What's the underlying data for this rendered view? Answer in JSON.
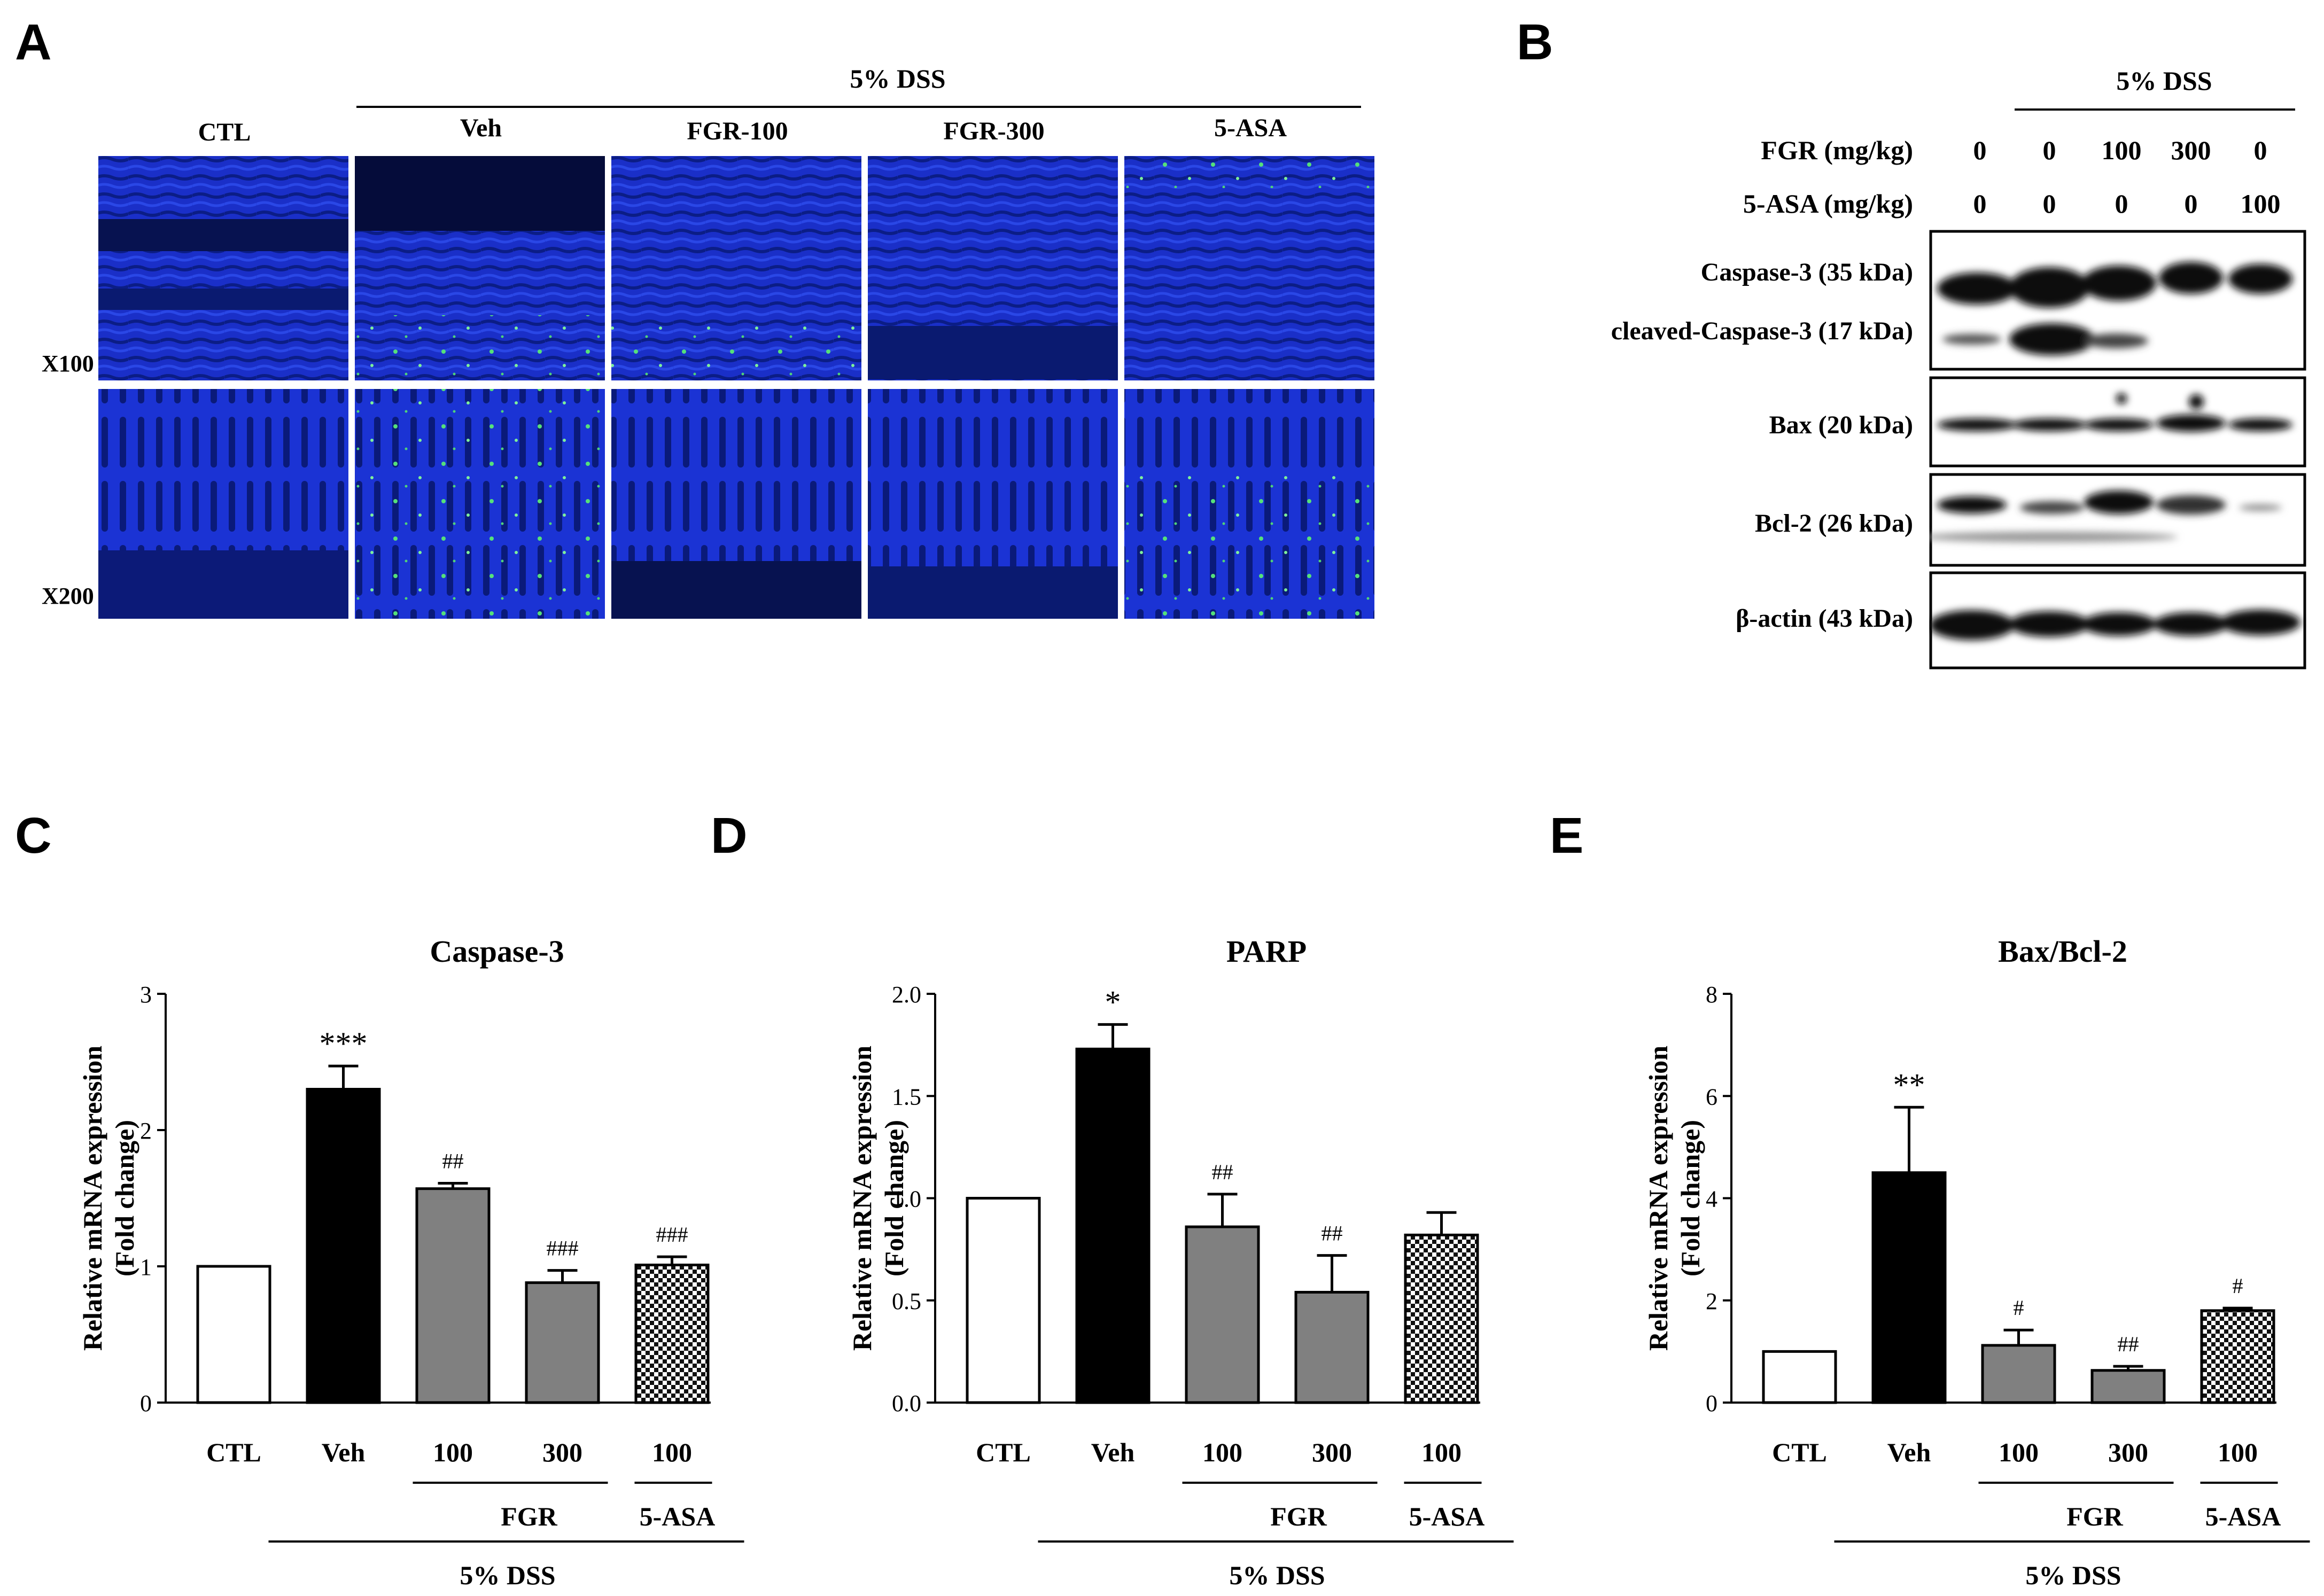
{
  "panels": {
    "a": "A",
    "b": "B",
    "c": "C",
    "d": "D",
    "e": "E"
  },
  "panel_a": {
    "dss_label": "5% DSS",
    "groups": [
      "CTL",
      "Veh",
      "FGR-100",
      "FGR-300",
      "5-ASA"
    ],
    "mag_rows": [
      "X100",
      "X200"
    ]
  },
  "panel_b": {
    "dss_label": "5% DSS",
    "rows": [
      {
        "label": "FGR (mg/kg)",
        "values": [
          "0",
          "0",
          "100",
          "300",
          "0"
        ]
      },
      {
        "label": "5-ASA (mg/kg)",
        "values": [
          "0",
          "0",
          "0",
          "0",
          "100"
        ]
      }
    ],
    "bands": [
      "Caspase-3 (35 kDa)",
      "cleaved-Caspase-3 (17 kDa)",
      "Bax (20 kDa)",
      "Bcl-2 (26 kDa)",
      "β-actin (43 kDa)"
    ]
  },
  "chart_data": [
    {
      "type": "bar",
      "title": "Caspase-3",
      "ylabel": "Relative mRNA expression (Fold change)",
      "ylim": [
        0,
        3
      ],
      "yticks": [
        "0",
        "1",
        "2",
        "3"
      ],
      "categories": [
        "CTL",
        "Veh",
        "100",
        "300",
        "100"
      ],
      "values": [
        1.0,
        2.3,
        1.57,
        0.88,
        1.01
      ],
      "errors": [
        0,
        0.17,
        0.04,
        0.09,
        0.06
      ],
      "annotations": [
        "",
        "***",
        "##",
        "###",
        "###"
      ],
      "group_labels": {
        "fgr": "FGR",
        "asa": "5-ASA",
        "dss": "5% DSS"
      }
    },
    {
      "type": "bar",
      "title": "PARP",
      "ylabel": "Relative mRNA expression (Fold change)",
      "ylim": [
        0,
        2.0
      ],
      "yticks": [
        "0.0",
        "0.5",
        "1.0",
        "1.5",
        "2.0"
      ],
      "categories": [
        "CTL",
        "Veh",
        "100",
        "300",
        "100"
      ],
      "values": [
        1.0,
        1.73,
        0.86,
        0.54,
        0.82
      ],
      "errors": [
        0,
        0.12,
        0.16,
        0.18,
        0.11
      ],
      "annotations": [
        "",
        "*",
        "##",
        "##",
        ""
      ],
      "group_labels": {
        "fgr": "FGR",
        "asa": "5-ASA",
        "dss": "5% DSS"
      }
    },
    {
      "type": "bar",
      "title": "Bax/Bcl-2",
      "ylabel": "Relative mRNA expression (Fold change)",
      "ylim": [
        0,
        8
      ],
      "yticks": [
        "0",
        "2",
        "4",
        "6",
        "8"
      ],
      "categories": [
        "CTL",
        "Veh",
        "100",
        "300",
        "100"
      ],
      "values": [
        1.0,
        4.5,
        1.12,
        0.63,
        1.8
      ],
      "errors": [
        0,
        1.28,
        0.3,
        0.08,
        0.05
      ],
      "annotations": [
        "",
        "**",
        "#",
        "##",
        "#"
      ],
      "group_labels": {
        "fgr": "FGR",
        "asa": "5-ASA",
        "dss": "5% DSS"
      }
    }
  ]
}
